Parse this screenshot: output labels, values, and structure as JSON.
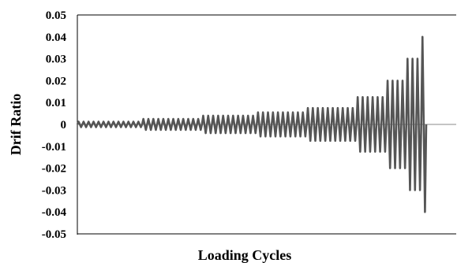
{
  "chart_data": {
    "type": "line",
    "title": "",
    "xlabel": "Loading Cycles",
    "ylabel": "Drif Ratio",
    "ylim": [
      -0.05,
      0.05
    ],
    "yticks": [
      "0.05",
      "0.04",
      "0.03",
      "0.02",
      "0.01",
      "0",
      "-0.01",
      "-0.02",
      "-0.03",
      "-0.04",
      "-0.05"
    ],
    "ytick_values": [
      0.05,
      0.04,
      0.03,
      0.02,
      0.01,
      0,
      -0.01,
      -0.02,
      -0.03,
      -0.04,
      -0.05
    ],
    "grid": false,
    "legend": "none",
    "line_color": "#555555",
    "loading_steps": [
      {
        "amplitude": 0.00125,
        "cycles": 13
      },
      {
        "amplitude": 0.0025,
        "cycles": 12
      },
      {
        "amplitude": 0.004,
        "cycles": 11
      },
      {
        "amplitude": 0.0055,
        "cycles": 10
      },
      {
        "amplitude": 0.0075,
        "cycles": 10
      },
      {
        "amplitude": 0.0125,
        "cycles": 6
      },
      {
        "amplitude": 0.02,
        "cycles": 4
      },
      {
        "amplitude": 0.03,
        "cycles": 3
      },
      {
        "amplitude": 0.04,
        "cycles": 1
      }
    ]
  }
}
